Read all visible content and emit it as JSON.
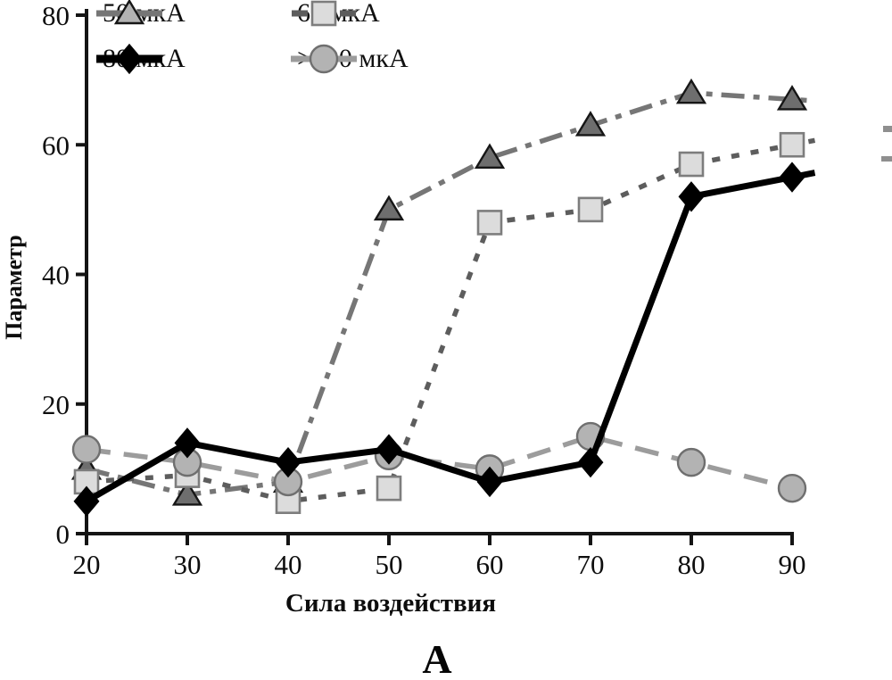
{
  "panel_label": "А",
  "colors": {
    "background": "#ffffff",
    "axis": "#141414",
    "tick_text": "#0e0e0e"
  },
  "chart_data": {
    "type": "line",
    "title": "",
    "xlabel": "Сила воздействия",
    "ylabel": "Параметр",
    "x": [
      20,
      30,
      40,
      50,
      60,
      70,
      80,
      90
    ],
    "xticks": [
      20,
      30,
      40,
      50,
      60,
      70,
      80,
      90
    ],
    "yticks": [
      0,
      20,
      40,
      60,
      80
    ],
    "xlim": [
      20,
      92
    ],
    "ylim": [
      0,
      80
    ],
    "grid": false,
    "legend_position": "top-left two-column",
    "series": [
      {
        "name": "50 мкА",
        "marker": "triangle",
        "values": [
          10,
          6,
          8,
          50,
          58,
          63,
          68,
          67
        ],
        "dash": "dash-dot",
        "legend_line": "solid",
        "line_color": "#767676",
        "line_width": 5.5,
        "marker_fill": "#6e6e6e",
        "marker_stroke": "#161616",
        "legend_marker_fill": "#b2b2b2",
        "z": 1
      },
      {
        "name": "60 мкА",
        "marker": "square",
        "values": [
          8,
          9,
          5,
          7,
          48,
          50,
          57,
          60
        ],
        "dash": "dotted",
        "legend_line": "dashed",
        "line_color": "#5d5d5d",
        "line_width": 5.5,
        "marker_fill": "#dcdcdc",
        "marker_stroke": "#7d7d7d",
        "z": 2
      },
      {
        "name": "80 мкА",
        "marker": "diamond",
        "values": [
          5,
          14,
          11,
          13,
          8,
          11,
          52,
          55
        ],
        "dash": "solid",
        "legend_line": "solid",
        "line_color": "#000000",
        "line_width": 7,
        "marker_fill": "#000000",
        "marker_stroke": "#000000",
        "z": 4
      },
      {
        "name": ">100 мкА",
        "marker": "circle",
        "values": [
          13,
          11,
          8,
          12,
          10,
          15,
          11,
          7
        ],
        "dash": "long-dash",
        "legend_line": "solid",
        "line_color": "#9c9c9c",
        "line_width": 5.5,
        "marker_fill": "#b3b3b3",
        "marker_stroke": "#6f6f6f",
        "z": 3
      }
    ]
  }
}
